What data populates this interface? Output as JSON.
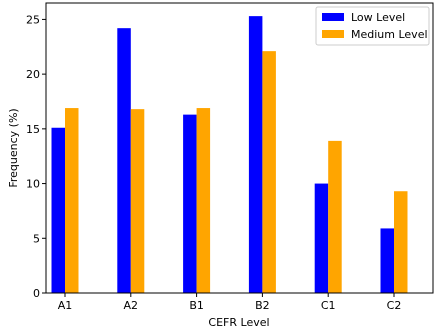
{
  "chart_data": {
    "type": "bar",
    "title": "",
    "xlabel": "CEFR Level",
    "ylabel": "Frequency (%)",
    "categories": [
      "A1",
      "A2",
      "B1",
      "B2",
      "C1",
      "C2"
    ],
    "series": [
      {
        "name": "Low Level",
        "color": "#0000ff",
        "values": [
          15.1,
          24.2,
          16.3,
          25.3,
          10.0,
          5.9
        ]
      },
      {
        "name": "Medium Level",
        "color": "#ffa500",
        "values": [
          16.9,
          16.8,
          16.9,
          22.1,
          13.9,
          9.3
        ]
      }
    ],
    "ylim": [
      0,
      26.5
    ],
    "yticks": [
      0,
      5,
      10,
      15,
      20,
      25
    ],
    "grid": false,
    "legend_position": "top-right"
  }
}
